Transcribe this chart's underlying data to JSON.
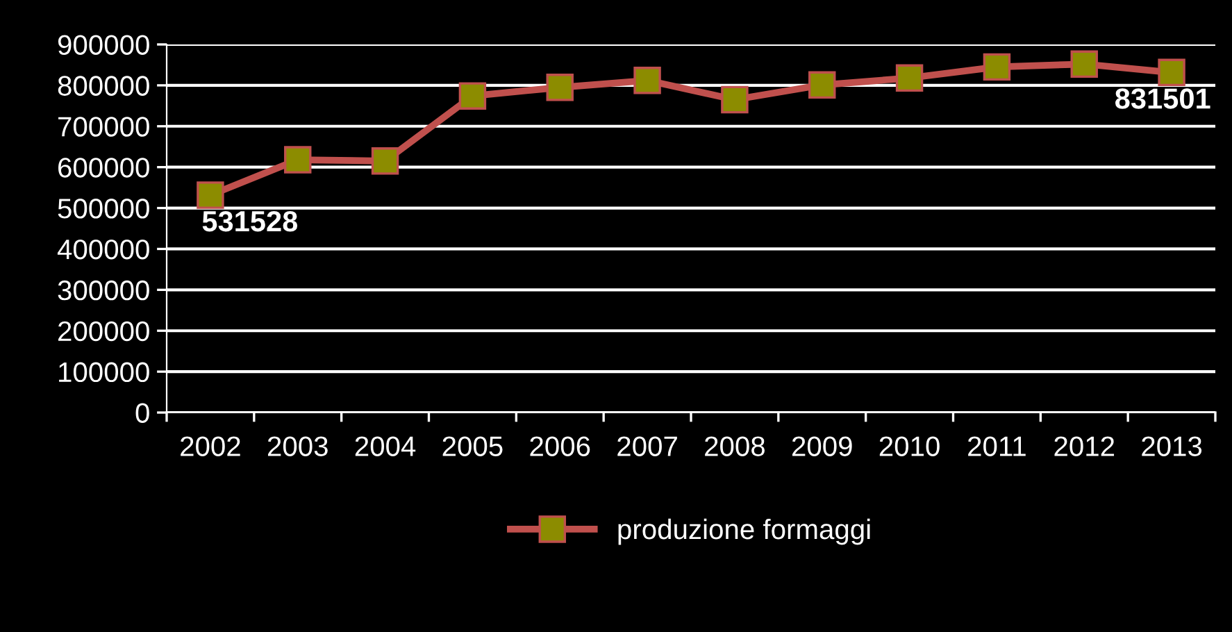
{
  "chart_data": {
    "type": "line",
    "categories": [
      "2002",
      "2003",
      "2004",
      "2005",
      "2006",
      "2007",
      "2008",
      "2009",
      "2010",
      "2011",
      "2012",
      "2013"
    ],
    "series": [
      {
        "name": "produzione formaggi",
        "color": "#c0504d",
        "values": [
          531528,
          618000,
          615000,
          774000,
          795000,
          812000,
          765000,
          801000,
          818000,
          845000,
          852000,
          831501
        ],
        "value_labels": [
          "531528",
          null,
          null,
          null,
          null,
          null,
          null,
          null,
          null,
          null,
          null,
          "831501"
        ]
      }
    ],
    "ylim": [
      0,
      900000
    ],
    "yticks": [
      0,
      100000,
      200000,
      300000,
      400000,
      500000,
      600000,
      700000,
      800000,
      900000
    ],
    "grid": "y",
    "legend": "bottom",
    "marker": "square",
    "line_style": "solid"
  }
}
